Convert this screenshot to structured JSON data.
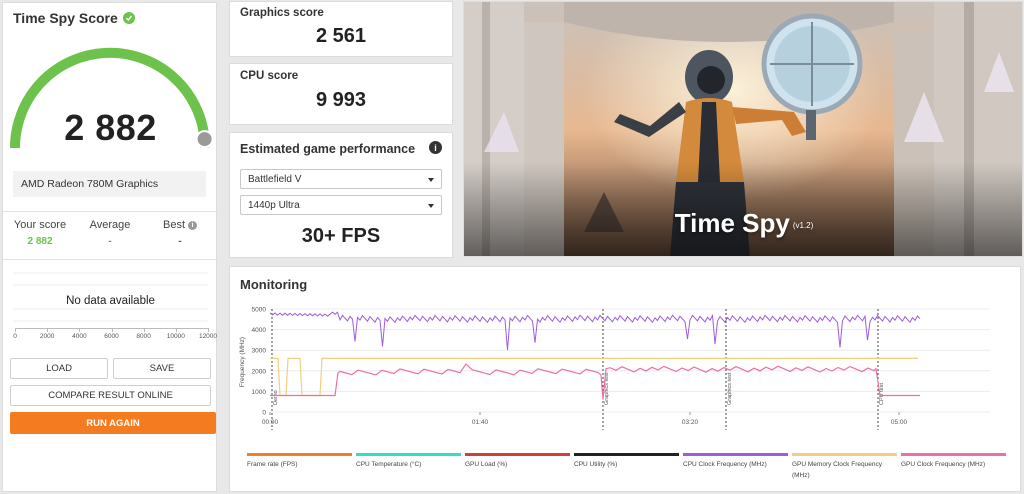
{
  "score_panel": {
    "title": "Time Spy Score",
    "score": "2 882",
    "gauge_fraction": 0.97,
    "gpu": "AMD Radeon 780M Graphics",
    "your_score_label": "Your score",
    "your_score": "2 882",
    "average_label": "Average",
    "average": "-",
    "best_label": "Best",
    "best": "-",
    "no_data": "No data available",
    "hist_ticks": [
      "0",
      "2000",
      "4000",
      "6000",
      "8000",
      "10000",
      "12000"
    ],
    "load_label": "LOAD",
    "save_label": "SAVE",
    "compare_label": "COMPARE RESULT ONLINE",
    "run_again_label": "RUN AGAIN"
  },
  "graphics": {
    "label": "Graphics score",
    "value": "2 561"
  },
  "cpu": {
    "label": "CPU score",
    "value": "9 993"
  },
  "estimated": {
    "title": "Estimated game performance",
    "game": "Battlefield V",
    "preset": "1440p Ultra",
    "fps": "30+ FPS"
  },
  "hero": {
    "title": "Time Spy",
    "version": "(v1.2)"
  },
  "monitoring": {
    "title": "Monitoring",
    "y_label": "Frequency (MHz)",
    "y_ticks": [
      "5000",
      "4000",
      "3000",
      "2000",
      "1000",
      "0"
    ],
    "x_ticks": [
      "00:00",
      "01:40",
      "03:20",
      "05:00"
    ],
    "markers": [
      "Demo",
      "Graphics test",
      "Graphics test",
      "CPU test"
    ],
    "legend": [
      {
        "label": "Frame rate (FPS)",
        "color": "#f07f2a"
      },
      {
        "label": "CPU Temperature (°C)",
        "color": "#2ee0c8"
      },
      {
        "label": "GPU Load (%)",
        "color": "#d73c3c"
      },
      {
        "label": "CPU Utility (%)",
        "color": "#222222"
      },
      {
        "label": "CPU Clock Frequency (MHz)",
        "color": "#9c5ce0"
      },
      {
        "label": "GPU Memory Clock Frequency (MHz)",
        "color": "#f0d080"
      },
      {
        "label": "GPU Clock Frequency (MHz)",
        "color": "#ee6ea8"
      }
    ]
  },
  "colors": {
    "accent": "#f47b20",
    "gauge": "#6cc24a",
    "your_score": "#6cc24a",
    "average": "#2aa6e0"
  }
}
